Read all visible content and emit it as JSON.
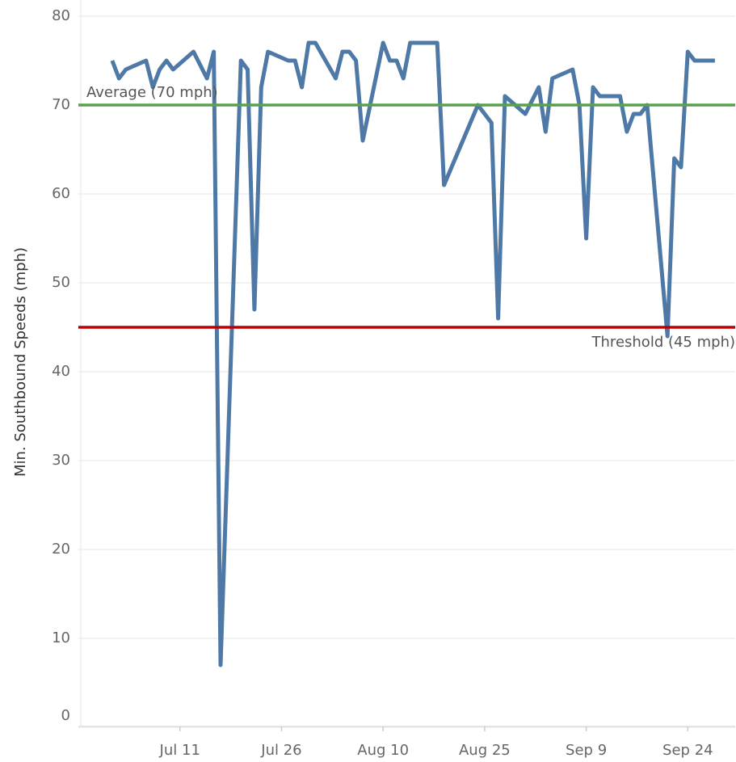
{
  "chart_data": {
    "type": "line",
    "y_label": "Min. Southbound Speeds (mph)",
    "x": [
      "Jul 1",
      "Jul 2",
      "Jul 3",
      "Jul 6",
      "Jul 7",
      "Jul 8",
      "Jul 9",
      "Jul 10",
      "Jul 13",
      "Jul 15",
      "Jul 16",
      "Jul 17",
      "Jul 20",
      "Jul 21",
      "Jul 22",
      "Jul 23",
      "Jul 24",
      "Jul 27",
      "Jul 28",
      "Jul 29",
      "Jul 30",
      "Jul 31",
      "Aug 3",
      "Aug 4",
      "Aug 5",
      "Aug 6",
      "Aug 7",
      "Aug 10",
      "Aug 11",
      "Aug 12",
      "Aug 13",
      "Aug 14",
      "Aug 18",
      "Aug 19",
      "Aug 24",
      "Aug 26",
      "Aug 27",
      "Aug 28",
      "Aug 31",
      "Sep 2",
      "Sep 3",
      "Sep 4",
      "Sep 7",
      "Sep 8",
      "Sep 9",
      "Sep 10",
      "Sep 11",
      "Sep 14",
      "Sep 15",
      "Sep 16",
      "Sep 17",
      "Sep 18",
      "Sep 21",
      "Sep 22",
      "Sep 23",
      "Sep 24",
      "Sep 25",
      "Sep 28"
    ],
    "values": [
      75,
      73,
      74,
      75,
      72,
      74,
      75,
      74,
      76,
      73,
      76,
      7,
      75,
      74,
      47,
      72,
      76,
      75,
      75,
      72,
      77,
      77,
      73,
      76,
      76,
      75,
      66,
      77,
      75,
      75,
      73,
      77,
      77,
      61,
      70,
      68,
      46,
      71,
      69,
      72,
      67,
      73,
      74,
      70,
      55,
      72,
      71,
      71,
      67,
      69,
      69,
      70,
      44,
      64,
      63,
      76,
      75,
      75
    ],
    "color": "#4e79a7",
    "xlim": [
      "Jun 26",
      "Oct 1"
    ],
    "xticks": [
      "Jul 11",
      "Jul 26",
      "Aug 10",
      "Aug 25",
      "Sep 9",
      "Sep 24"
    ],
    "ylim": [
      0,
      80
    ],
    "yticks": [
      0,
      10,
      20,
      30,
      40,
      50,
      60,
      70,
      80
    ],
    "grid": true,
    "reference_lines": [
      {
        "value": 70,
        "label": "Average (70 mph)",
        "color": "#59a14f",
        "label_corner": "top-left"
      },
      {
        "value": 45,
        "label": "Threshold (45 mph)",
        "color": "#c00000",
        "label_corner": "bottom-right"
      }
    ]
  }
}
